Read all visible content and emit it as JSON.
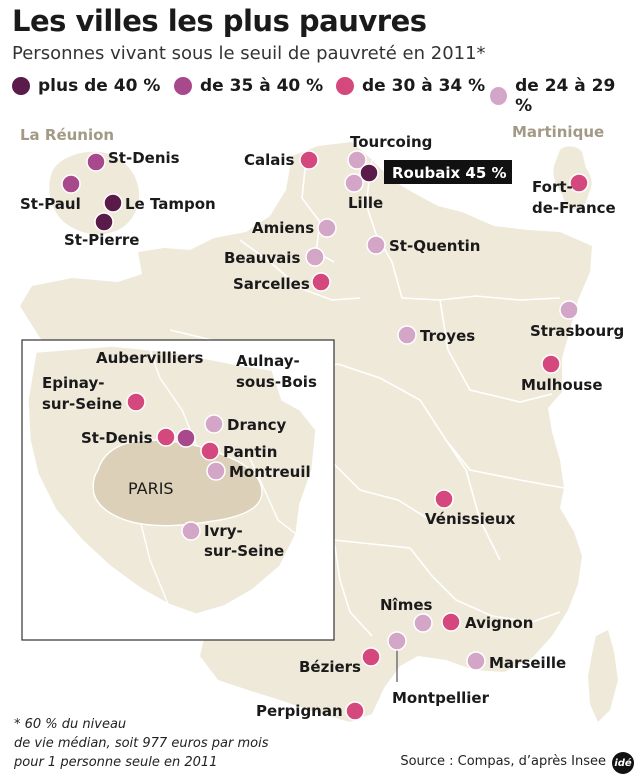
{
  "title": "Les villes les plus pauvres",
  "subtitle": "Personnes vivant sous le seuil de pauvreté en 2011*",
  "colors": {
    "over40": "#5a1a4a",
    "c35_40": "#a8498c",
    "c30_34": "#d4487e",
    "c24_29": "#d3a6c8",
    "land": "#efe9da",
    "paris_land": "#dcd0b8",
    "borders": "#ffffff"
  },
  "legend": [
    {
      "label": "plus de 40 %",
      "color": "#5a1a4a"
    },
    {
      "label": "de 35 à 40 %",
      "color": "#a8498c"
    },
    {
      "label": "de 30 à 34 %",
      "color": "#d4487e"
    },
    {
      "label": "de 24 à 29 %",
      "color": "#d3a6c8"
    }
  ],
  "regions": {
    "reunion": "La Réunion",
    "martinique": "Martinique"
  },
  "paris_label": "PARIS",
  "highlight": {
    "label": "Roubaix 45 %"
  },
  "cities": {
    "st_denis_reunion": "St-Denis",
    "st_paul": "St-Paul",
    "le_tampon": "Le Tampon",
    "st_pierre": "St-Pierre",
    "calais": "Calais",
    "tourcoing": "Tourcoing",
    "lille": "Lille",
    "amiens": "Amiens",
    "beauvais": "Beauvais",
    "st_quentin": "St-Quentin",
    "sarcelles": "Sarcelles",
    "fort_de_france_1": "Fort-",
    "fort_de_france_2": "de-France",
    "strasbourg": "Strasbourg",
    "mulhouse": "Mulhouse",
    "troyes": "Troyes",
    "aubervilliers": "Aubervilliers",
    "aulnay_1": "Aulnay-",
    "aulnay_2": "sous-Bois",
    "epinay_1": "Epinay-",
    "epinay_2": "sur-Seine",
    "drancy": "Drancy",
    "st_denis_idf": "St-Denis",
    "pantin": "Pantin",
    "montreuil": "Montreuil",
    "ivry_1": "Ivry-",
    "ivry_2": "sur-Seine",
    "venissieux": "Vénissieux",
    "nimes": "Nîmes",
    "avignon": "Avignon",
    "beziers": "Béziers",
    "marseille": "Marseille",
    "montpellier": "Montpellier",
    "perpignan": "Perpignan"
  },
  "footnote": [
    "* 60 % du niveau",
    "de vie médian, soit 977 euros par mois",
    "pour 1 personne seule en 2011"
  ],
  "source": "Source : Compas, d’après Insee",
  "logo": "idé"
}
